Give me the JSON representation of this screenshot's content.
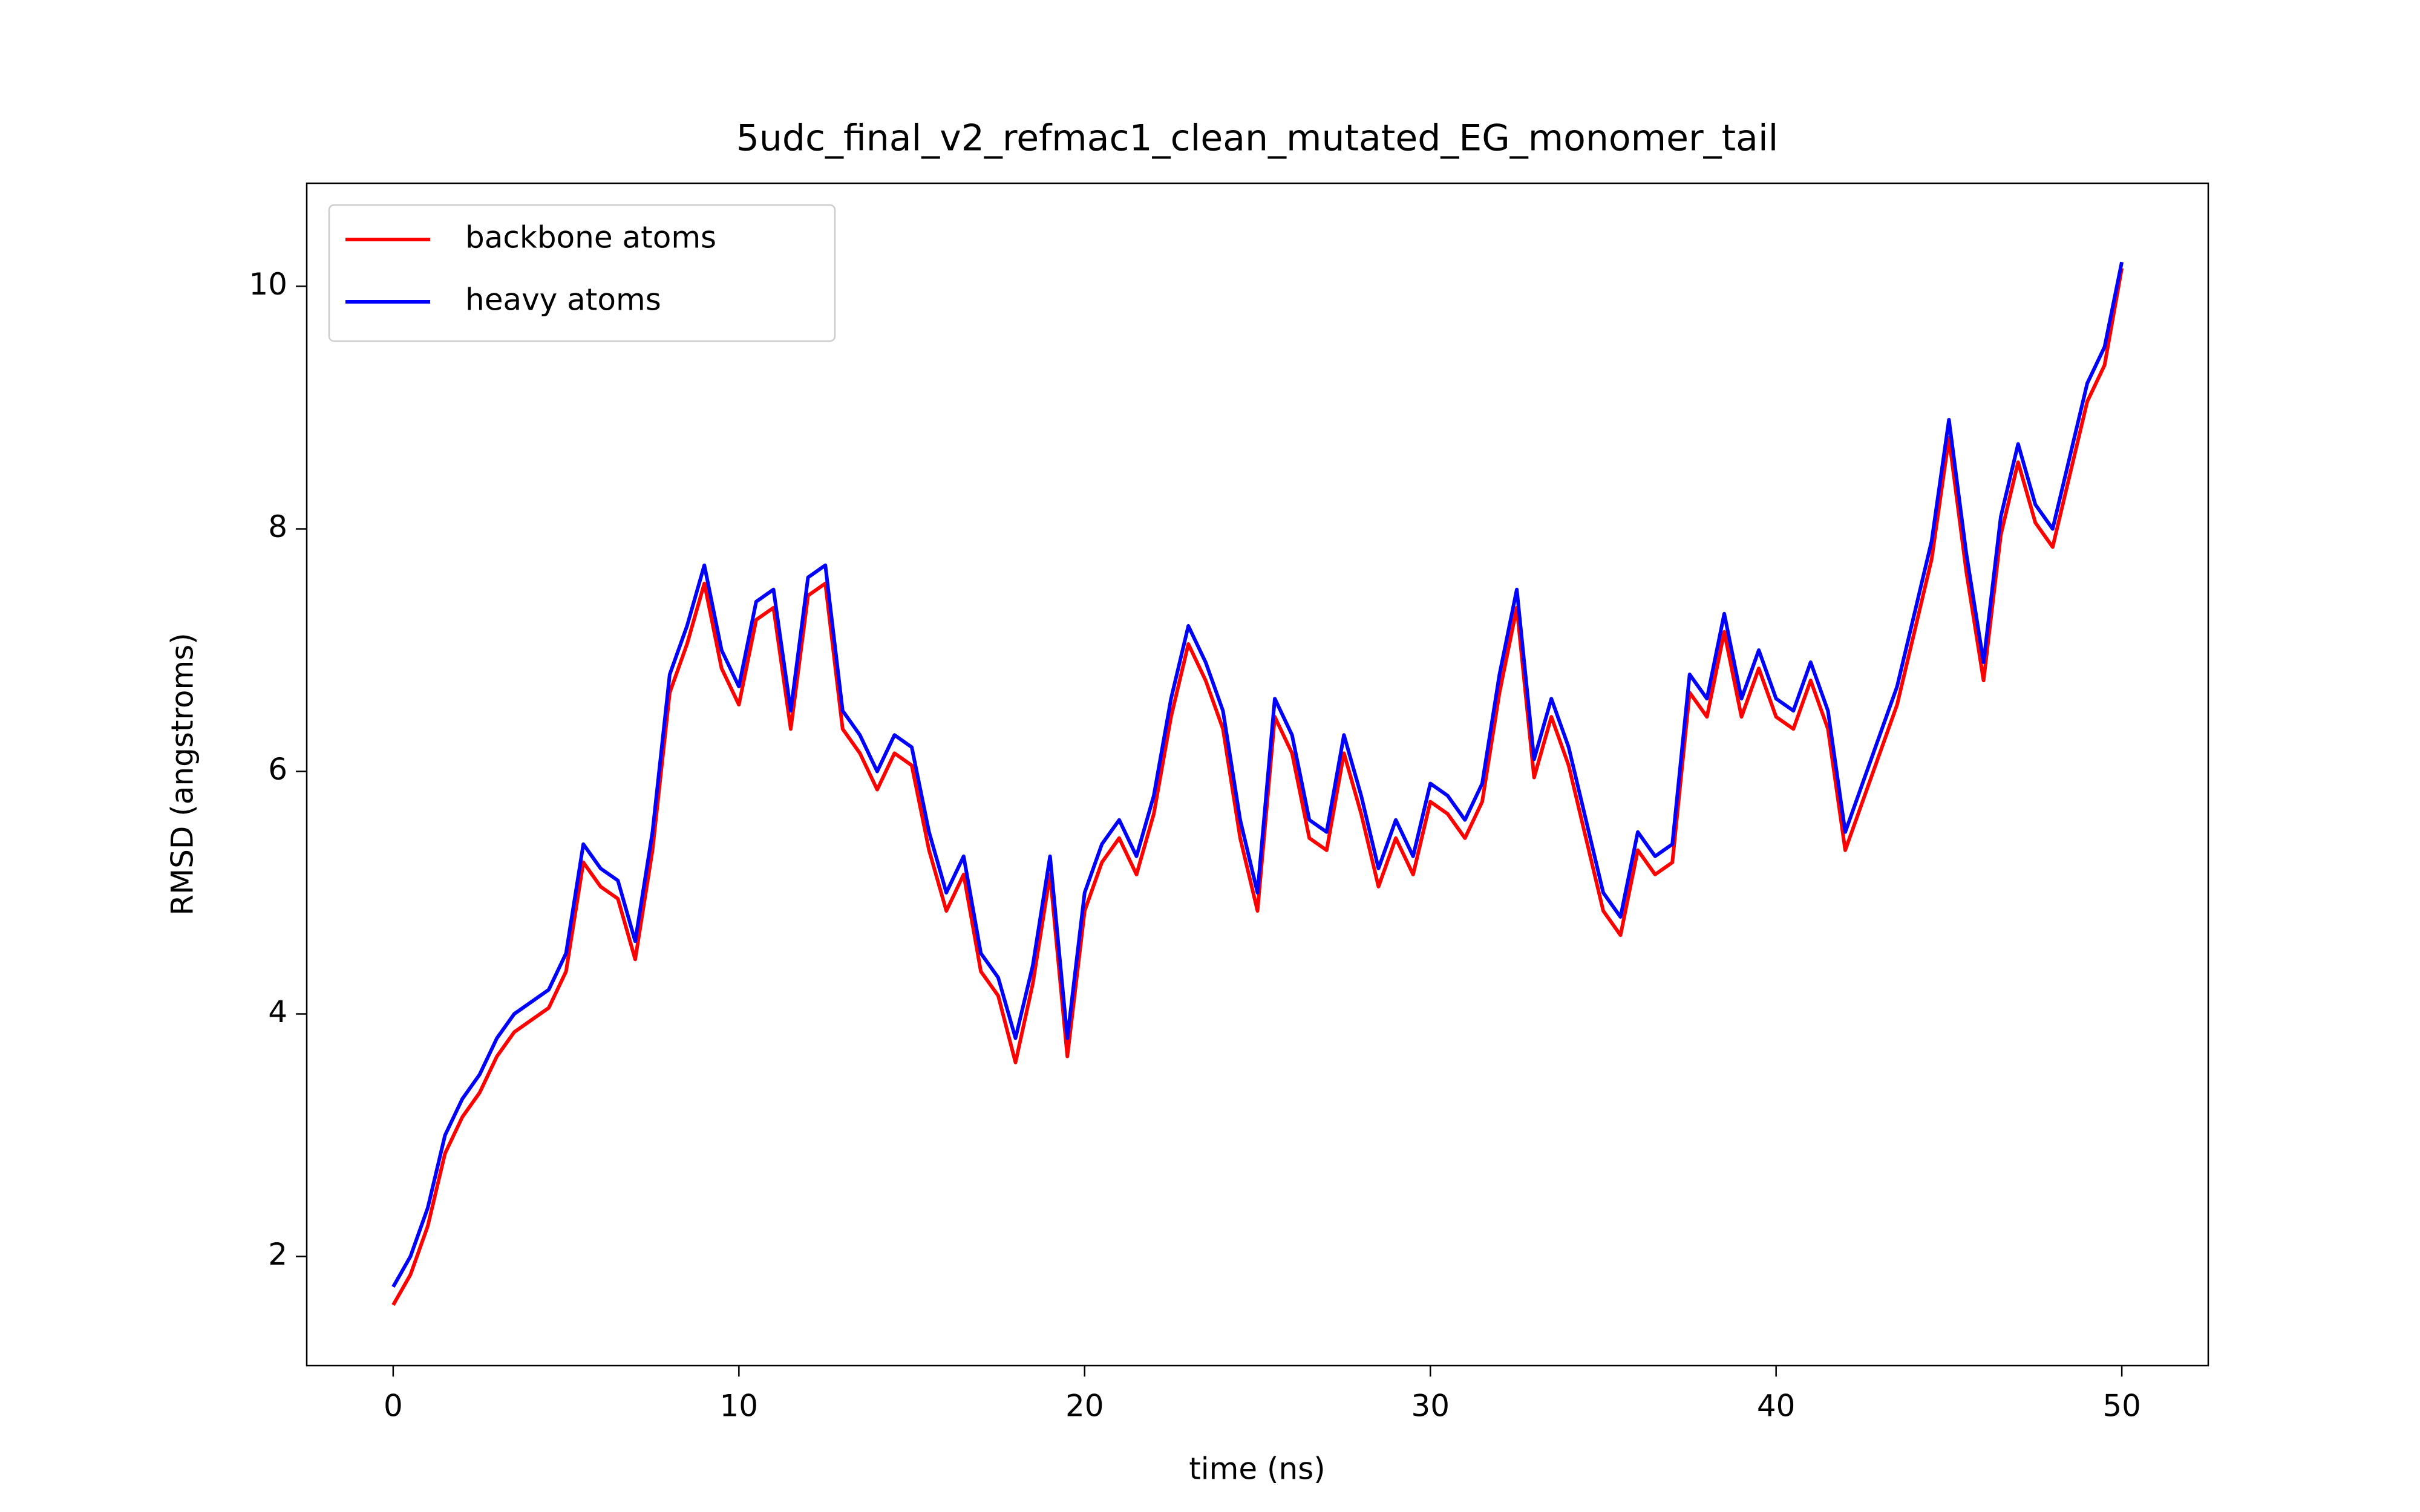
{
  "chart_data": {
    "type": "line",
    "title": "5udc_final_v2_refmac1_clean_mutated_EG_monomer_tail",
    "xlabel": "time (ns)",
    "ylabel": "RMSD (angstroms)",
    "x": [
      0,
      0.5,
      1,
      1.5,
      2,
      2.5,
      3,
      3.5,
      4,
      4.5,
      5,
      5.5,
      6,
      6.5,
      7,
      7.5,
      8,
      8.5,
      9,
      9.5,
      10,
      10.5,
      11,
      11.5,
      12,
      12.5,
      13,
      13.5,
      14,
      14.5,
      15,
      15.5,
      16,
      16.5,
      17,
      17.5,
      18,
      18.5,
      19,
      19.5,
      20,
      20.5,
      21,
      21.5,
      22,
      22.5,
      23,
      23.5,
      24,
      24.5,
      25,
      25.5,
      26,
      26.5,
      27,
      27.5,
      28,
      28.5,
      29,
      29.5,
      30,
      30.5,
      31,
      31.5,
      32,
      32.5,
      33,
      33.5,
      34,
      34.5,
      35,
      35.5,
      36,
      36.5,
      37,
      37.5,
      38,
      38.5,
      39,
      39.5,
      40,
      40.5,
      41,
      41.5,
      42,
      42.5,
      43,
      43.5,
      44,
      44.5,
      45,
      45.5,
      46,
      46.5,
      47,
      47.5,
      48,
      48.5,
      49,
      49.5,
      50
    ],
    "series": [
      {
        "name": "backbone atoms",
        "color": "#ff0000",
        "values": [
          1.6,
          1.85,
          2.25,
          2.85,
          3.15,
          3.35,
          3.65,
          3.85,
          3.95,
          4.05,
          4.35,
          5.25,
          5.05,
          4.95,
          4.45,
          5.35,
          6.65,
          7.05,
          7.55,
          6.85,
          6.55,
          7.25,
          7.35,
          6.35,
          7.45,
          7.55,
          6.35,
          6.15,
          5.85,
          6.15,
          6.05,
          5.35,
          4.85,
          5.15,
          4.35,
          4.15,
          3.6,
          4.25,
          5.15,
          3.65,
          4.85,
          5.25,
          5.45,
          5.15,
          5.65,
          6.45,
          7.05,
          6.75,
          6.35,
          5.45,
          4.85,
          6.45,
          6.15,
          5.45,
          5.35,
          6.15,
          5.65,
          5.05,
          5.45,
          5.15,
          5.75,
          5.65,
          5.45,
          5.75,
          6.65,
          7.35,
          5.95,
          6.45,
          6.05,
          5.45,
          4.85,
          4.65,
          5.35,
          5.15,
          5.25,
          6.65,
          6.45,
          7.15,
          6.45,
          6.85,
          6.45,
          6.35,
          6.75,
          6.35,
          5.35,
          5.75,
          6.15,
          6.55,
          7.15,
          7.75,
          8.75,
          7.65,
          6.75,
          7.95,
          8.55,
          8.05,
          7.85,
          8.45,
          9.05,
          9.35,
          10.15
        ]
      },
      {
        "name": "heavy atoms",
        "color": "#0000ff",
        "values": [
          1.75,
          2.0,
          2.4,
          3.0,
          3.3,
          3.5,
          3.8,
          4.0,
          4.1,
          4.2,
          4.5,
          5.4,
          5.2,
          5.1,
          4.6,
          5.5,
          6.8,
          7.2,
          7.7,
          7.0,
          6.7,
          7.4,
          7.5,
          6.5,
          7.6,
          7.7,
          6.5,
          6.3,
          6.0,
          6.3,
          6.2,
          5.5,
          5.0,
          5.3,
          4.5,
          4.3,
          3.8,
          4.4,
          5.3,
          3.8,
          5.0,
          5.4,
          5.6,
          5.3,
          5.8,
          6.6,
          7.2,
          6.9,
          6.5,
          5.6,
          5.0,
          6.6,
          6.3,
          5.6,
          5.5,
          6.3,
          5.8,
          5.2,
          5.6,
          5.3,
          5.9,
          5.8,
          5.6,
          5.9,
          6.8,
          7.5,
          6.1,
          6.6,
          6.2,
          5.6,
          5.0,
          4.8,
          5.5,
          5.3,
          5.4,
          6.8,
          6.6,
          7.3,
          6.6,
          7.0,
          6.6,
          6.5,
          6.9,
          6.5,
          5.5,
          5.9,
          6.3,
          6.7,
          7.3,
          7.9,
          8.9,
          7.8,
          6.9,
          8.1,
          8.7,
          8.2,
          8.0,
          8.6,
          9.2,
          9.5,
          10.2
        ]
      }
    ],
    "xlim": [
      -2.5,
      52.5
    ],
    "ylim": [
      1.1,
      10.85
    ],
    "xticks": [
      0,
      10,
      20,
      30,
      40,
      50
    ],
    "yticks": [
      2,
      4,
      6,
      8,
      10
    ],
    "legend": "upper left",
    "grid": false
  }
}
